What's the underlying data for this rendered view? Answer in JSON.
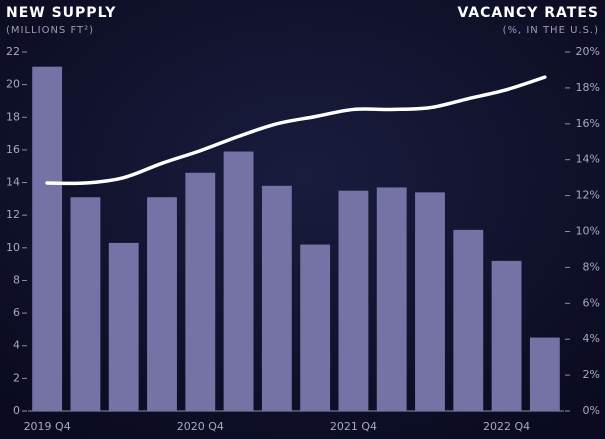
{
  "chart_data": {
    "type": "bar-line",
    "title": "NEW SUPPLY",
    "subtitle": "(MILLIONS FT²)",
    "y2_title": "VACANCY RATES",
    "y2_subtitle": "(%, IN THE U.S.)",
    "categories": [
      "2019 Q4",
      null,
      null,
      null,
      "2020 Q4",
      null,
      null,
      null,
      "2021 Q4",
      null,
      null,
      null,
      "2022 Q4",
      null
    ],
    "series": [
      {
        "type": "bar",
        "color": "#7572a6",
        "values": [
          21.1,
          13.1,
          10.3,
          13.1,
          14.6,
          15.9,
          13.8,
          10.2,
          13.5,
          13.7,
          13.4,
          11.1,
          9.2,
          4.5
        ]
      },
      {
        "type": "line",
        "axis": "y2",
        "color": "#ffffff",
        "values": [
          12.7,
          12.7,
          13.0,
          13.8,
          14.5,
          15.3,
          16.0,
          16.4,
          16.8,
          16.8,
          16.9,
          17.4,
          17.9,
          18.6
        ]
      }
    ],
    "ylim": [
      0,
      22
    ],
    "yticks": [
      0,
      2,
      4,
      6,
      8,
      10,
      12,
      14,
      16,
      18,
      20,
      22
    ],
    "y2lim": [
      0,
      20
    ],
    "y2ticks": [
      {
        "value": 0,
        "label": "0%"
      },
      {
        "value": 2,
        "label": "2%"
      },
      {
        "value": 4,
        "label": "4%"
      },
      {
        "value": 6,
        "label": "6%"
      },
      {
        "value": 8,
        "label": "8%"
      },
      {
        "value": 10,
        "label": "10%"
      },
      {
        "value": 12,
        "label": "12%"
      },
      {
        "value": 14,
        "label": "14%"
      },
      {
        "value": 16,
        "label": "16%"
      },
      {
        "value": 18,
        "label": "18%"
      },
      {
        "value": 20,
        "label": "20%"
      }
    ]
  }
}
